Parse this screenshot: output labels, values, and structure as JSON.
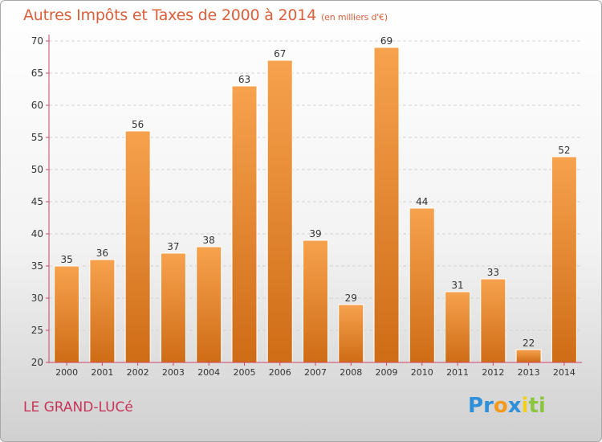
{
  "header": {
    "title": "Autres Impôts et Taxes de 2000 à 2014",
    "subtitle": "(en milliers d'€)"
  },
  "footer": {
    "city": "LE GRAND-LUCé",
    "logo_letters": [
      {
        "ch": "P",
        "color": "#2f8fd8"
      },
      {
        "ch": "r",
        "color": "#2f8fd8"
      },
      {
        "ch": "o",
        "color": "#f29a1d"
      },
      {
        "ch": "x",
        "color": "#2f8fd8"
      },
      {
        "ch": "i",
        "color": "#f2cf1d"
      },
      {
        "ch": "t",
        "color": "#8cc63f"
      },
      {
        "ch": "i",
        "color": "#8cc63f"
      }
    ]
  },
  "chart_data": {
    "type": "bar",
    "categories": [
      "2000",
      "2001",
      "2002",
      "2003",
      "2004",
      "2005",
      "2006",
      "2007",
      "2008",
      "2009",
      "2010",
      "2011",
      "2012",
      "2013",
      "2014"
    ],
    "values": [
      35,
      36,
      56,
      37,
      38,
      63,
      67,
      39,
      29,
      69,
      44,
      31,
      33,
      22,
      52
    ],
    "ylim": [
      20,
      70
    ],
    "yticks": [
      20,
      25,
      30,
      35,
      40,
      45,
      50,
      55,
      60,
      65,
      70
    ],
    "grid": true,
    "colors": {
      "bar_top": "#f7a24e",
      "bar_bottom": "#cf6c16",
      "bar_edge": "#ffffff",
      "grid": "#d2d2d2",
      "axis": "#cc4466",
      "label": "#333333"
    }
  }
}
